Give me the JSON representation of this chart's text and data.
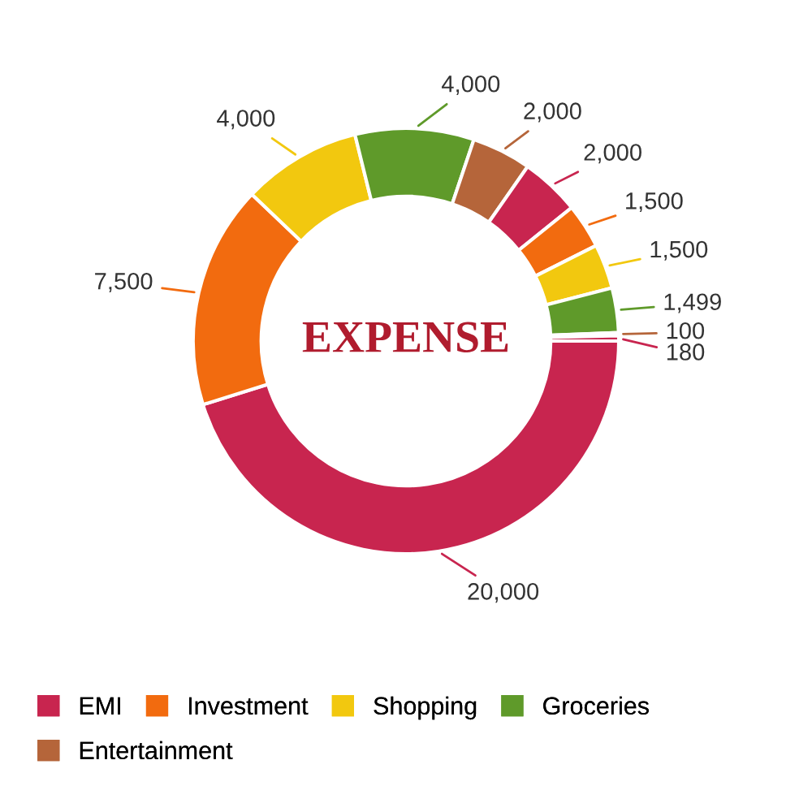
{
  "chart_data": {
    "type": "donut",
    "title": "EXPENSE",
    "categories": [
      "EMI",
      "Investment",
      "Shopping",
      "Groceries",
      "Entertainment",
      null,
      null,
      null,
      null,
      null,
      null
    ],
    "values": [
      20000,
      7500,
      4000,
      4000,
      2000,
      2000,
      1500,
      1500,
      1499,
      100,
      180
    ],
    "value_labels": [
      "20,000",
      "7,500",
      "4,000",
      "4,000",
      "2,000",
      "2,000",
      "1,500",
      "1,500",
      "1,499",
      "100",
      "180"
    ],
    "colors": [
      "#c8254f",
      "#f26b0f",
      "#f2c80f",
      "#5f9a2a",
      "#b5653a",
      "#c8254f",
      "#f26b0f",
      "#f2c80f",
      "#5f9a2a",
      "#b5653a",
      "#c8254f"
    ],
    "legend": "bottom"
  }
}
